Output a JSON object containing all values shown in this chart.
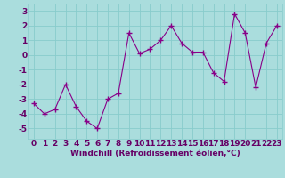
{
  "x": [
    0,
    1,
    2,
    3,
    4,
    5,
    6,
    7,
    8,
    9,
    10,
    11,
    12,
    13,
    14,
    15,
    16,
    17,
    18,
    19,
    20,
    21,
    22,
    23
  ],
  "y": [
    -3.3,
    -4.0,
    -3.7,
    -2.0,
    -3.5,
    -4.5,
    -5.0,
    -3.0,
    -2.6,
    1.5,
    0.1,
    0.4,
    1.0,
    2.0,
    0.8,
    0.2,
    0.2,
    -1.2,
    -1.8,
    2.8,
    1.5,
    -2.2,
    0.8,
    2.0
  ],
  "line_color": "#880088",
  "marker": "+",
  "marker_size": 4,
  "marker_lw": 1.0,
  "line_width": 0.8,
  "bg_color": "#aadddd",
  "grid_color": "#88cccc",
  "xlabel": "Windchill (Refroidissement éolien,°C)",
  "xlim": [
    -0.5,
    23.5
  ],
  "ylim": [
    -5.7,
    3.5
  ],
  "yticks": [
    -5,
    -4,
    -3,
    -2,
    -1,
    0,
    1,
    2,
    3
  ],
  "xticks": [
    0,
    1,
    2,
    3,
    4,
    5,
    6,
    7,
    8,
    9,
    10,
    11,
    12,
    13,
    14,
    15,
    16,
    17,
    18,
    19,
    20,
    21,
    22,
    23
  ],
  "tick_label_color": "#660066",
  "xlabel_color": "#660066",
  "xlabel_fontsize": 6.5,
  "tick_fontsize": 6.5,
  "xlabel_bold": true
}
